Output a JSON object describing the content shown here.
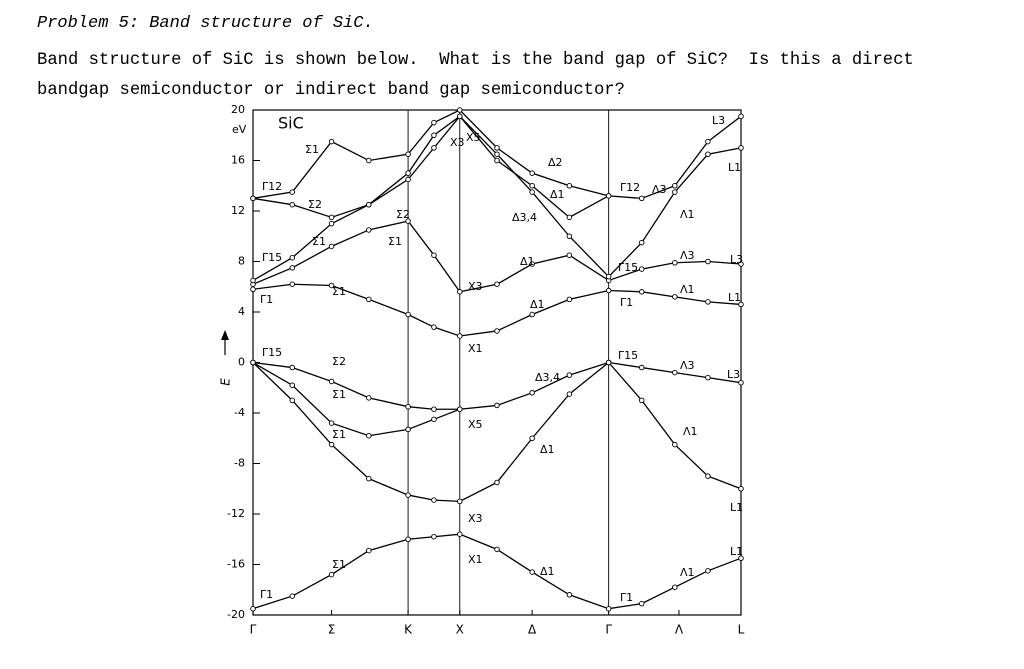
{
  "header": {
    "title": "Problem 5: Band structure of SiC."
  },
  "question": "Band structure of SiC is shown below.  What is the band gap of SiC?  Is this a direct bandgap semiconductor or indirect band gap semiconductor?",
  "chart_data": {
    "type": "line",
    "title": "SiC",
    "ylabel": "E",
    "yunit": "eV",
    "x": [
      0,
      0.19,
      0.38,
      0.56,
      0.75,
      0.875,
      1,
      1.18,
      1.35,
      1.53,
      1.72,
      1.88,
      2.04,
      2.2,
      2.36
    ],
    "xlim": [
      0,
      2.36
    ],
    "xticks": [
      {
        "value": 0,
        "label": "Γ"
      },
      {
        "value": 0.38,
        "label": "Σ"
      },
      {
        "value": 0.75,
        "label": "K"
      },
      {
        "value": 1,
        "label": "X"
      },
      {
        "value": 1.35,
        "label": "Δ"
      },
      {
        "value": 1.72,
        "label": "Γ"
      },
      {
        "value": 2.06,
        "label": "Λ"
      },
      {
        "value": 2.36,
        "label": "L"
      }
    ],
    "vertical_lines": [
      0.75,
      1,
      1.72
    ],
    "ylim": [
      -20,
      20
    ],
    "yticks": [
      -20,
      -16,
      -12,
      -8,
      -4,
      0,
      4,
      8,
      12,
      16,
      20
    ],
    "color": "#000000",
    "series": [
      {
        "values": [
          -19.5,
          -18.5,
          -16.8,
          -14.9,
          -14.0,
          -13.8,
          -13.6,
          -14.8,
          -16.6,
          -18.4,
          -19.5,
          -19.1,
          -17.8,
          -16.5,
          -15.5
        ]
      },
      {
        "values": [
          0,
          -3,
          -6.5,
          -9.2,
          -10.5,
          -10.9,
          -11,
          -9.5,
          -6,
          -2.5,
          0,
          -3,
          -6.5,
          -9,
          -10
        ]
      },
      {
        "values": [
          0,
          -1.8,
          -4.8,
          -5.8,
          -5.3,
          -4.5,
          -3.7,
          -3.4,
          -2.4,
          -1,
          0,
          -0.4,
          -0.8,
          -1.2,
          -1.6
        ]
      },
      {
        "values": [
          0,
          -0.4,
          -1.5,
          -2.8,
          -3.5,
          -3.7,
          -3.7,
          null,
          null,
          null,
          null,
          null,
          null,
          null,
          null
        ]
      },
      {
        "values": [
          5.8,
          6.2,
          6.1,
          5.0,
          3.8,
          2.8,
          2.1,
          2.5,
          3.8,
          5.0,
          5.7,
          5.6,
          5.2,
          4.8,
          4.6
        ]
      },
      {
        "values": [
          6.2,
          7.5,
          9.2,
          10.5,
          11.2,
          8.5,
          5.6,
          6.2,
          7.8,
          8.5,
          6.5,
          7.4,
          7.9,
          8.0,
          7.8
        ]
      },
      {
        "values": [
          6.5,
          8.3,
          11,
          12.5,
          14.5,
          17,
          19.5,
          16.5,
          13.5,
          10,
          6.8,
          9.5,
          13.5,
          16.5,
          17
        ]
      },
      {
        "values": [
          13,
          13.5,
          17.5,
          16,
          16.5,
          19,
          20,
          17,
          15,
          14,
          13.2,
          13,
          14,
          17.5,
          19.5
        ]
      },
      {
        "values": [
          13,
          12.5,
          11.5,
          12.5,
          15,
          18,
          19.5,
          16,
          14,
          11.5,
          13.2,
          null,
          null,
          null,
          null
        ]
      }
    ],
    "annotations": [
      "Σ1",
      "Γ12",
      "Σ2",
      "Σ1",
      "Γ15",
      "Γ1",
      "Σ1",
      "X3",
      "X1",
      "Γ15",
      "Σ2",
      "Σ1",
      "Σ1",
      "X5",
      "X3",
      "X1",
      "Σ1",
      "Γ1",
      "Δ2",
      "Δ1",
      "Δ3,4",
      "Δ1",
      "Δ1",
      "Δ3,4",
      "Δ1",
      "Δ1",
      "Γ12",
      "Λ3",
      "Λ1",
      "Γ15",
      "Λ3",
      "L3",
      "Λ1",
      "L1",
      "Γ1",
      "Γ15",
      "Λ3",
      "L3",
      "Λ1",
      "L1",
      "L1",
      "Λ1",
      "Γ1",
      "L3",
      "L1",
      "X3",
      "X5",
      "Σ2",
      "Σ1"
    ]
  }
}
